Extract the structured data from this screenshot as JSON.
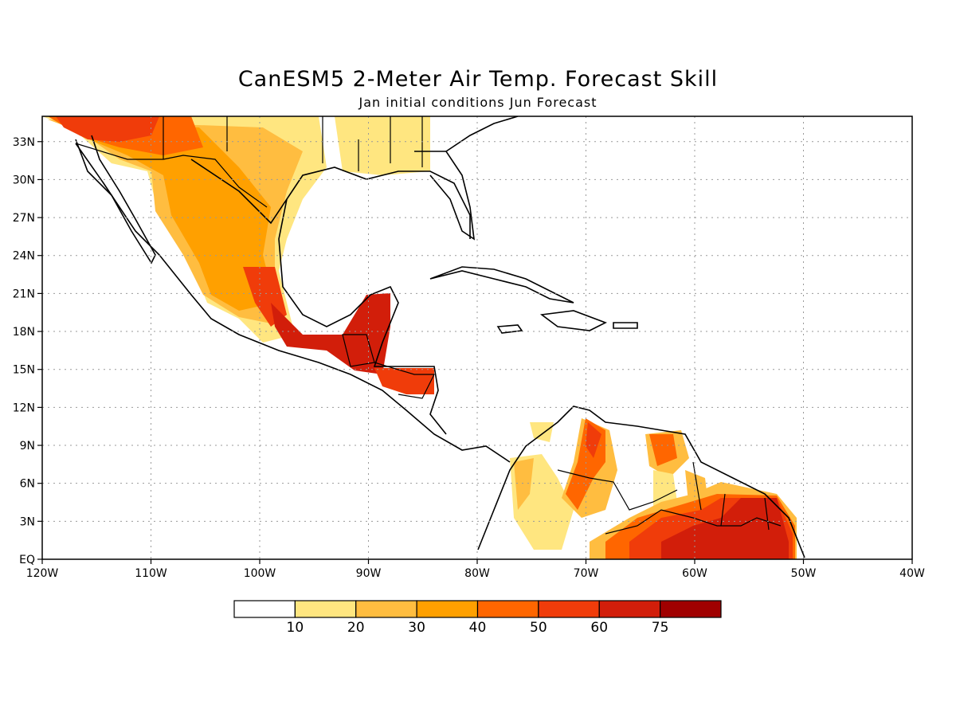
{
  "title": "CanESM5 2-Meter Air Temp. Forecast Skill",
  "subtitle": "Jan initial conditions  Jun Forecast",
  "map": {
    "lon_range": [
      -120,
      -40
    ],
    "lat_range": [
      0,
      35
    ],
    "lon_ticks": [
      "120W",
      "110W",
      "100W",
      "90W",
      "80W",
      "70W",
      "60W",
      "50W",
      "40W"
    ],
    "lat_ticks": [
      "EQ",
      "3N",
      "6N",
      "9N",
      "12N",
      "15N",
      "18N",
      "21N",
      "24N",
      "27N",
      "30N",
      "33N"
    ],
    "gridlines": "dotted",
    "region": "Mexico, Central America, Caribbean, northern South America"
  },
  "colorbar": {
    "levels": [
      "10",
      "20",
      "30",
      "40",
      "50",
      "60",
      "75"
    ],
    "colors": [
      "#ffffff",
      "#ffe680",
      "#ffbd40",
      "#ffa000",
      "#ff6600",
      "#f03c0a",
      "#d21e0a",
      "#a00000"
    ]
  }
}
